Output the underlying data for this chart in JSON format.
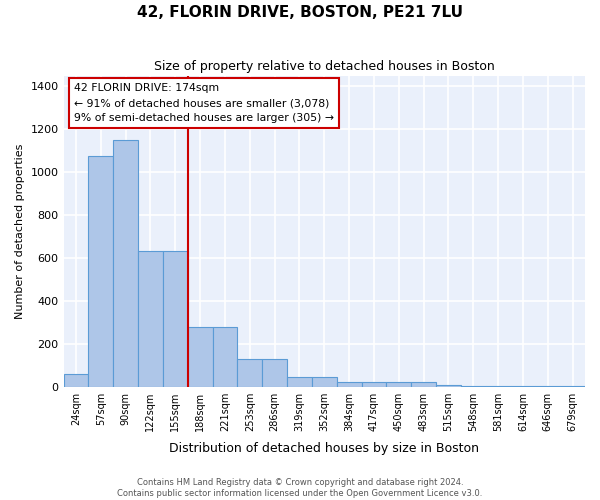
{
  "title": "42, FLORIN DRIVE, BOSTON, PE21 7LU",
  "subtitle": "Size of property relative to detached houses in Boston",
  "xlabel": "Distribution of detached houses by size in Boston",
  "ylabel": "Number of detached properties",
  "bar_labels": [
    "24sqm",
    "57sqm",
    "90sqm",
    "122sqm",
    "155sqm",
    "188sqm",
    "221sqm",
    "253sqm",
    "286sqm",
    "319sqm",
    "352sqm",
    "384sqm",
    "417sqm",
    "450sqm",
    "483sqm",
    "515sqm",
    "548sqm",
    "581sqm",
    "614sqm",
    "646sqm",
    "679sqm"
  ],
  "bar_values": [
    60,
    1075,
    1150,
    630,
    630,
    280,
    280,
    130,
    130,
    45,
    45,
    20,
    20,
    20,
    20,
    10,
    5,
    2,
    2,
    2,
    2
  ],
  "bar_color": "#aec6e8",
  "bar_edge_color": "#5b9bd5",
  "vline_color": "#cc0000",
  "annotation_text": "42 FLORIN DRIVE: 174sqm\n← 91% of detached houses are smaller (3,078)\n9% of semi-detached houses are larger (305) →",
  "annotation_box_color": "white",
  "annotation_box_edge_color": "#cc0000",
  "ylim": [
    0,
    1450
  ],
  "yticks": [
    0,
    200,
    400,
    600,
    800,
    1000,
    1200,
    1400
  ],
  "bg_color": "#eaf0fb",
  "grid_color": "white",
  "footer": "Contains HM Land Registry data © Crown copyright and database right 2024.\nContains public sector information licensed under the Open Government Licence v3.0."
}
